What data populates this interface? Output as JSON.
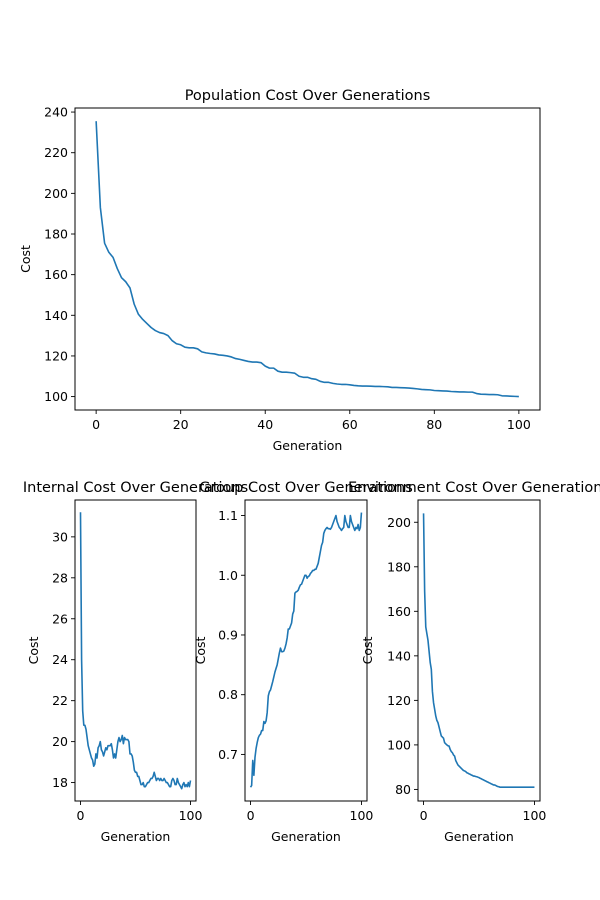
{
  "chart_data": [
    {
      "type": "line",
      "title": "Population Cost Over Generations",
      "xlabel": "Generation",
      "ylabel": "Cost",
      "xlim": [
        -5,
        105
      ],
      "ylim": [
        93.4,
        242
      ],
      "xticks": [
        0,
        20,
        40,
        60,
        80,
        100
      ],
      "yticks": [
        100,
        120,
        140,
        160,
        180,
        200,
        220,
        240
      ],
      "grid": false,
      "series": [
        {
          "color": "#1f77b4",
          "x": [
            0,
            1,
            2,
            3,
            4,
            5,
            6,
            7,
            8,
            9,
            10,
            11,
            12,
            13,
            14,
            15,
            16,
            17,
            18,
            19,
            20,
            21,
            22,
            23,
            24,
            25,
            26,
            27,
            28,
            29,
            30,
            31,
            32,
            33,
            34,
            35,
            36,
            37,
            38,
            39,
            40,
            41,
            42,
            43,
            44,
            45,
            46,
            47,
            48,
            49,
            50,
            51,
            52,
            53,
            54,
            55,
            56,
            57,
            58,
            59,
            60,
            61,
            62,
            63,
            64,
            65,
            66,
            67,
            68,
            69,
            70,
            71,
            72,
            73,
            74,
            75,
            76,
            77,
            78,
            79,
            80,
            81,
            82,
            83,
            84,
            85,
            86,
            87,
            88,
            89,
            90,
            91,
            92,
            93,
            94,
            95,
            96,
            97,
            98,
            99,
            100
          ],
          "values": [
            235.5,
            193,
            175.5,
            171,
            168.5,
            163,
            158.5,
            156.5,
            153.5,
            145.5,
            140.5,
            138,
            136,
            134,
            132.5,
            131.5,
            131,
            130,
            127.5,
            126,
            125.5,
            124.3,
            124,
            124,
            123.5,
            122,
            121.5,
            121.2,
            121,
            120.5,
            120.3,
            120,
            119.5,
            118.7,
            118.3,
            117.8,
            117.3,
            117,
            117,
            116.7,
            115,
            114,
            114,
            112.5,
            112,
            112,
            111.8,
            111.5,
            110,
            109.5,
            109.5,
            108.8,
            108.5,
            107.5,
            107,
            107,
            106.5,
            106.2,
            106,
            106,
            105.8,
            105.5,
            105.3,
            105.2,
            105.2,
            105.1,
            105,
            105,
            104.9,
            104.8,
            104.5,
            104.5,
            104.4,
            104.3,
            104.2,
            104,
            103.8,
            103.5,
            103.4,
            103.3,
            103,
            102.9,
            102.8,
            102.7,
            102.5,
            102.4,
            102.3,
            102.3,
            102.2,
            102.2,
            101.5,
            101.2,
            101.1,
            101,
            101,
            100.9,
            100.4,
            100.3,
            100.2,
            100.1,
            100
          ]
        }
      ]
    },
    {
      "type": "line",
      "title": "Internal Cost Over Generations",
      "xlabel": "Generation",
      "ylabel": "Cost",
      "xlim": [
        -5,
        105
      ],
      "ylim": [
        17.1,
        31.8
      ],
      "xticks": [
        0,
        100
      ],
      "yticks": [
        18,
        20,
        22,
        24,
        26,
        28,
        30
      ],
      "grid": false,
      "series": [
        {
          "color": "#1f77b4",
          "x": [
            0,
            1,
            2,
            3,
            4,
            5,
            6,
            7,
            8,
            9,
            10,
            11,
            12,
            13,
            14,
            15,
            16,
            17,
            18,
            19,
            20,
            21,
            22,
            23,
            24,
            25,
            26,
            27,
            28,
            29,
            30,
            31,
            32,
            33,
            34,
            35,
            36,
            37,
            38,
            39,
            40,
            41,
            42,
            43,
            44,
            45,
            46,
            47,
            48,
            49,
            50,
            51,
            52,
            53,
            54,
            55,
            56,
            57,
            58,
            59,
            60,
            61,
            62,
            63,
            64,
            65,
            66,
            67,
            68,
            69,
            70,
            71,
            72,
            73,
            74,
            75,
            76,
            77,
            78,
            79,
            80,
            81,
            82,
            83,
            84,
            85,
            86,
            87,
            88,
            89,
            90,
            91,
            92,
            93,
            94,
            95,
            96,
            97,
            98,
            99,
            100
          ],
          "values": [
            31.2,
            24,
            21.5,
            20.8,
            20.8,
            20.6,
            20.2,
            19.8,
            19.6,
            19.4,
            19.2,
            19.1,
            18.8,
            18.9,
            19.4,
            19.2,
            19.7,
            19.8,
            20,
            19.6,
            19.5,
            19.3,
            19.5,
            19.7,
            19.6,
            19.8,
            19.8,
            19.8,
            19.9,
            19.6,
            19.2,
            19.4,
            19.2,
            19.6,
            20,
            20.2,
            20,
            20.1,
            20.3,
            19.9,
            20.2,
            20.1,
            20.1,
            20.1,
            20,
            19.4,
            19.4,
            19.3,
            19,
            18.6,
            18.5,
            18.5,
            18.3,
            18.3,
            18.1,
            17.9,
            17.9,
            18,
            17.8,
            17.8,
            17.9,
            18,
            18,
            18.1,
            18.2,
            18.2,
            18.3,
            18.5,
            18.3,
            18.1,
            18.2,
            18.2,
            18.1,
            18.2,
            18.1,
            18.1,
            18.2,
            18.1,
            18,
            18,
            17.9,
            17.8,
            17.8,
            18.1,
            18.2,
            18.1,
            17.9,
            17.9,
            18.2,
            18,
            17.9,
            17.8,
            17.7,
            17.9,
            18,
            17.8,
            17.9,
            17.8,
            18,
            17.8,
            18.1
          ]
        }
      ]
    },
    {
      "type": "line",
      "title": "Group Cost Over Generations",
      "xlabel": "Generation",
      "ylabel": "Cost",
      "xlim": [
        -5,
        105
      ],
      "ylim": [
        0.622,
        1.126
      ],
      "xticks": [
        0,
        100
      ],
      "yticks": [
        0.7,
        0.8,
        0.9,
        1.0,
        1.1
      ],
      "ytickfmt": 1,
      "grid": false,
      "series": [
        {
          "color": "#1f77b4",
          "x": [
            0,
            1,
            2,
            3,
            4,
            5,
            6,
            7,
            8,
            9,
            10,
            11,
            12,
            13,
            14,
            15,
            16,
            17,
            18,
            19,
            20,
            21,
            22,
            23,
            24,
            25,
            26,
            27,
            28,
            29,
            30,
            31,
            32,
            33,
            34,
            35,
            36,
            37,
            38,
            39,
            40,
            41,
            42,
            43,
            44,
            45,
            46,
            47,
            48,
            49,
            50,
            51,
            52,
            53,
            54,
            55,
            56,
            57,
            58,
            59,
            60,
            61,
            62,
            63,
            64,
            65,
            66,
            67,
            68,
            69,
            70,
            71,
            72,
            73,
            74,
            75,
            76,
            77,
            78,
            79,
            80,
            81,
            82,
            83,
            84,
            85,
            86,
            87,
            88,
            89,
            90,
            91,
            92,
            93,
            94,
            95,
            96,
            97,
            98,
            99,
            100
          ],
          "values": [
            0.645,
            0.648,
            0.69,
            0.665,
            0.695,
            0.71,
            0.72,
            0.728,
            0.732,
            0.734,
            0.74,
            0.74,
            0.755,
            0.752,
            0.756,
            0.77,
            0.798,
            0.805,
            0.808,
            0.815,
            0.822,
            0.83,
            0.838,
            0.844,
            0.85,
            0.86,
            0.87,
            0.878,
            0.872,
            0.872,
            0.873,
            0.878,
            0.885,
            0.895,
            0.91,
            0.91,
            0.915,
            0.92,
            0.935,
            0.94,
            0.97,
            0.972,
            0.973,
            0.975,
            0.98,
            0.984,
            0.985,
            0.99,
            0.995,
            1,
            1,
            0.995,
            0.998,
            0.999,
            1.003,
            1.005,
            1.008,
            1.008,
            1.01,
            1.01,
            1.015,
            1.02,
            1.03,
            1.04,
            1.05,
            1.055,
            1.07,
            1.075,
            1.078,
            1.08,
            1.078,
            1.078,
            1.077,
            1.08,
            1.085,
            1.09,
            1.095,
            1.1,
            1.09,
            1.085,
            1.08,
            1.078,
            1.075,
            1.078,
            1.08,
            1.1,
            1.09,
            1.085,
            1.08,
            1.08,
            1.1,
            1.09,
            1.085,
            1.08,
            1.075,
            1.08,
            1.078,
            1.085,
            1.075,
            1.08,
            1.105
          ]
        }
      ]
    },
    {
      "type": "line",
      "title": "Environment Cost Over Generations",
      "xlabel": "Generation",
      "ylabel": "Cost",
      "xlim": [
        -5,
        105
      ],
      "ylim": [
        74.8,
        210
      ],
      "xticks": [
        0,
        100
      ],
      "yticks": [
        80,
        100,
        120,
        140,
        160,
        180,
        200
      ],
      "grid": false,
      "series": [
        {
          "color": "#1f77b4",
          "x": [
            0,
            1,
            2,
            3,
            4,
            5,
            6,
            7,
            8,
            9,
            10,
            11,
            12,
            13,
            14,
            15,
            16,
            17,
            18,
            19,
            20,
            21,
            22,
            23,
            24,
            25,
            26,
            27,
            28,
            29,
            30,
            31,
            32,
            33,
            34,
            35,
            36,
            37,
            38,
            39,
            40,
            41,
            42,
            43,
            44,
            45,
            46,
            47,
            48,
            49,
            50,
            51,
            52,
            53,
            54,
            55,
            56,
            57,
            58,
            59,
            60,
            61,
            62,
            63,
            64,
            65,
            66,
            67,
            68,
            69,
            70,
            71,
            72,
            73,
            74,
            75,
            76,
            77,
            78,
            79,
            80,
            81,
            82,
            83,
            84,
            85,
            86,
            87,
            88,
            89,
            90,
            91,
            92,
            93,
            94,
            95,
            96,
            97,
            98,
            99,
            100
          ],
          "values": [
            204,
            169,
            153,
            150,
            147,
            142,
            137,
            134,
            124,
            119,
            116,
            113,
            111,
            110,
            108,
            106,
            104,
            103.5,
            103,
            101,
            100.5,
            100,
            99.6,
            99.5,
            98,
            97,
            96.5,
            95.5,
            95,
            93,
            92,
            91,
            90.5,
            90,
            89.5,
            89,
            88.5,
            88.3,
            88,
            87.5,
            87.3,
            87,
            86.8,
            86.5,
            86.3,
            86,
            86,
            85.8,
            85.7,
            85.5,
            85.3,
            85,
            84.8,
            84.5,
            84.3,
            84,
            83.8,
            83.5,
            83.3,
            83,
            82.8,
            82.5,
            82.3,
            82,
            82,
            81.8,
            81.5,
            81.3,
            81.2,
            81,
            81,
            81,
            81,
            81,
            81,
            81,
            81,
            81,
            81,
            81,
            81,
            81,
            81,
            81,
            81,
            81,
            81,
            81,
            81,
            81,
            81,
            81,
            81,
            81,
            81,
            81,
            81,
            81,
            81,
            81,
            81
          ]
        }
      ]
    }
  ]
}
